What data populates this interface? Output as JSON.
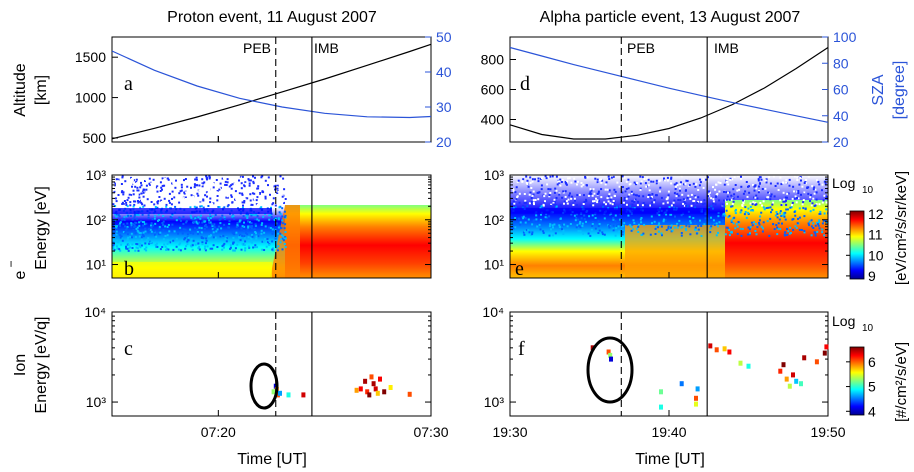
{
  "colors": {
    "sza": "#2b54d8",
    "altitude": "#000000",
    "jet": [
      "#00008f",
      "#0000ff",
      "#0080ff",
      "#00ffff",
      "#80ff80",
      "#ffff00",
      "#ff8000",
      "#ff0000",
      "#800000"
    ]
  },
  "titles": {
    "left": "Proton event, 11 August 2007",
    "right": "Alpha particle event, 13 August 2007"
  },
  "boundaries": {
    "peb": "PEB",
    "imb": "IMB"
  },
  "axis_labels": {
    "altitude": "Altitude",
    "altitude_unit": "[km]",
    "sza": "SZA",
    "sza_unit": "[degree]",
    "electron_symbol": "e",
    "electron_energy": "Energy [eV]",
    "ion": "Ion",
    "ion_energy": "Energy [eV/q]",
    "time": "Time [UT]",
    "log10": "Log",
    "log10_sub": "10",
    "electron_flux_unit": "[eV/cm²/s/sr/keV]",
    "ion_flux_unit": "[#/cm²/s/eV]"
  },
  "panel_letters": [
    "a",
    "b",
    "c",
    "d",
    "e",
    "f"
  ],
  "chart_data": [
    {
      "panel": "a",
      "type": "line",
      "x_unit": "minutes after 07:15 UT",
      "xlim": [
        0,
        15
      ],
      "ylabel": "Altitude [km]",
      "ylim": [
        450,
        1750
      ],
      "yticks": [
        500,
        1000,
        1500
      ],
      "y2label": "SZA [degree]",
      "y2lim": [
        20,
        50
      ],
      "y2ticks": [
        20,
        30,
        40,
        50
      ],
      "series": [
        {
          "axis": "left",
          "x": [
            0,
            2,
            4,
            6,
            8,
            10,
            12,
            14,
            15
          ],
          "values": [
            490,
            620,
            760,
            910,
            1070,
            1230,
            1400,
            1570,
            1660
          ]
        },
        {
          "axis": "right",
          "x": [
            0,
            2,
            4,
            6,
            8,
            10,
            12,
            14,
            15
          ],
          "values": [
            46,
            40.5,
            36,
            32.5,
            30,
            28.2,
            27.2,
            27,
            27.3
          ]
        }
      ],
      "vlines": {
        "peb": 7.7,
        "imb": 9.4
      }
    },
    {
      "panel": "b",
      "type": "heatmap",
      "xlim": [
        0,
        15
      ],
      "ylabel": "Energy [eV]",
      "yscale": "log",
      "ylim": [
        5,
        1000
      ],
      "yticks": [
        "10¹",
        "10²",
        "10³"
      ],
      "clim": [
        9,
        12
      ],
      "colorbar_ticks": [
        9,
        10,
        11,
        12
      ]
    },
    {
      "panel": "c",
      "type": "scatter",
      "xlim": [
        0,
        15
      ],
      "xticks": [
        "07:20",
        "07:30"
      ],
      "ylabel": "Energy [eV/q]",
      "yscale": "log",
      "ylim": [
        700,
        10000
      ],
      "yticks": [
        "10³",
        "10⁴"
      ],
      "clim": [
        4,
        6.5
      ],
      "colorbar_ticks": [
        4,
        5,
        6
      ],
      "points": [
        {
          "x": 7.7,
          "y": 1500,
          "c": 4.2
        },
        {
          "x": 7.75,
          "y": 1380,
          "c": 5.8
        },
        {
          "x": 7.6,
          "y": 1300,
          "c": 5.3
        },
        {
          "x": 7.8,
          "y": 1200,
          "c": 6.0
        },
        {
          "x": 7.9,
          "y": 1250,
          "c": 4.7
        },
        {
          "x": 8.3,
          "y": 1200,
          "c": 5.0
        },
        {
          "x": 9.0,
          "y": 1200,
          "c": 6.3
        },
        {
          "x": 11.5,
          "y": 1350,
          "c": 5.8
        },
        {
          "x": 11.7,
          "y": 1400,
          "c": 6.2
        },
        {
          "x": 11.9,
          "y": 1700,
          "c": 6.4
        },
        {
          "x": 12.0,
          "y": 1300,
          "c": 6.1
        },
        {
          "x": 12.1,
          "y": 1200,
          "c": 6.5
        },
        {
          "x": 12.2,
          "y": 1900,
          "c": 6.0
        },
        {
          "x": 12.3,
          "y": 1600,
          "c": 6.4
        },
        {
          "x": 12.4,
          "y": 1400,
          "c": 6.3
        },
        {
          "x": 12.5,
          "y": 1250,
          "c": 5.7
        },
        {
          "x": 12.6,
          "y": 1800,
          "c": 6.2
        },
        {
          "x": 12.8,
          "y": 1300,
          "c": 6.5
        },
        {
          "x": 13.1,
          "y": 1450,
          "c": 5.6
        },
        {
          "x": 14.0,
          "y": 1220,
          "c": 6.0
        }
      ],
      "vlines": {
        "peb": 7.7,
        "imb": 9.4
      }
    },
    {
      "panel": "d",
      "type": "line",
      "x_unit": "minutes after 19:30 UT",
      "xlim": [
        0,
        20
      ],
      "ylabel": "Altitude [km]",
      "ylim": [
        250,
        950
      ],
      "yticks": [
        400,
        600,
        800
      ],
      "y2label": "SZA [degree]",
      "y2lim": [
        20,
        100
      ],
      "y2ticks": [
        20,
        40,
        60,
        80,
        100
      ],
      "series": [
        {
          "axis": "left",
          "x": [
            0,
            2,
            4,
            6,
            8,
            10,
            12,
            14,
            16,
            18,
            20
          ],
          "values": [
            365,
            300,
            270,
            270,
            295,
            340,
            410,
            500,
            610,
            740,
            880
          ]
        },
        {
          "axis": "right",
          "x": [
            0,
            2,
            4,
            6,
            8,
            10,
            12,
            14,
            16,
            18,
            20
          ],
          "values": [
            92,
            85.5,
            79,
            73,
            67,
            61,
            55.5,
            50,
            45,
            40,
            35
          ]
        }
      ],
      "vlines": {
        "peb": 7.0,
        "imb": 12.4
      }
    },
    {
      "panel": "e",
      "type": "heatmap",
      "xlim": [
        0,
        20
      ],
      "ylabel": "Energy [eV]",
      "yscale": "log",
      "ylim": [
        5,
        1000
      ],
      "yticks": [
        "10¹",
        "10²",
        "10³"
      ],
      "clim": [
        9,
        12
      ],
      "colorbar_ticks": [
        9,
        10,
        11,
        12
      ]
    },
    {
      "panel": "f",
      "type": "scatter",
      "xlim": [
        0,
        20
      ],
      "xticks": [
        "19:30",
        "19:40",
        "19:50"
      ],
      "ylabel": "Energy [eV/q]",
      "yscale": "log",
      "ylim": [
        700,
        10000
      ],
      "yticks": [
        "10³",
        "10⁴"
      ],
      "clim": [
        4,
        6.5
      ],
      "colorbar_ticks": [
        4,
        5,
        6
      ],
      "points": [
        {
          "x": 5.2,
          "y": 4000,
          "c": 6.4
        },
        {
          "x": 6.2,
          "y": 3600,
          "c": 6.0
        },
        {
          "x": 6.3,
          "y": 3300,
          "c": 5.3
        },
        {
          "x": 6.35,
          "y": 3000,
          "c": 4.2
        },
        {
          "x": 9.5,
          "y": 1300,
          "c": 5.2
        },
        {
          "x": 9.5,
          "y": 880,
          "c": 5.0
        },
        {
          "x": 10.8,
          "y": 1600,
          "c": 4.6
        },
        {
          "x": 11.7,
          "y": 1100,
          "c": 6.0
        },
        {
          "x": 11.7,
          "y": 950,
          "c": 5.5
        },
        {
          "x": 11.8,
          "y": 1400,
          "c": 4.7
        },
        {
          "x": 12.6,
          "y": 4200,
          "c": 6.3
        },
        {
          "x": 13.0,
          "y": 3800,
          "c": 6.0
        },
        {
          "x": 13.5,
          "y": 3900,
          "c": 5.7
        },
        {
          "x": 13.8,
          "y": 3600,
          "c": 6.2
        },
        {
          "x": 14.5,
          "y": 2700,
          "c": 5.4
        },
        {
          "x": 15.0,
          "y": 2500,
          "c": 5.0
        },
        {
          "x": 17.0,
          "y": 2200,
          "c": 6.1
        },
        {
          "x": 17.2,
          "y": 2600,
          "c": 6.5
        },
        {
          "x": 17.4,
          "y": 1800,
          "c": 5.8
        },
        {
          "x": 17.6,
          "y": 1500,
          "c": 5.4
        },
        {
          "x": 17.8,
          "y": 2000,
          "c": 6.3
        },
        {
          "x": 18.0,
          "y": 1700,
          "c": 4.8
        },
        {
          "x": 18.3,
          "y": 1600,
          "c": 5.1
        },
        {
          "x": 18.5,
          "y": 3100,
          "c": 6.4
        },
        {
          "x": 19.3,
          "y": 2800,
          "c": 6.0
        },
        {
          "x": 19.8,
          "y": 3500,
          "c": 6.5
        },
        {
          "x": 19.9,
          "y": 4100,
          "c": 6.2
        }
      ],
      "vlines": {
        "peb": 7.0,
        "imb": 12.4
      }
    }
  ]
}
